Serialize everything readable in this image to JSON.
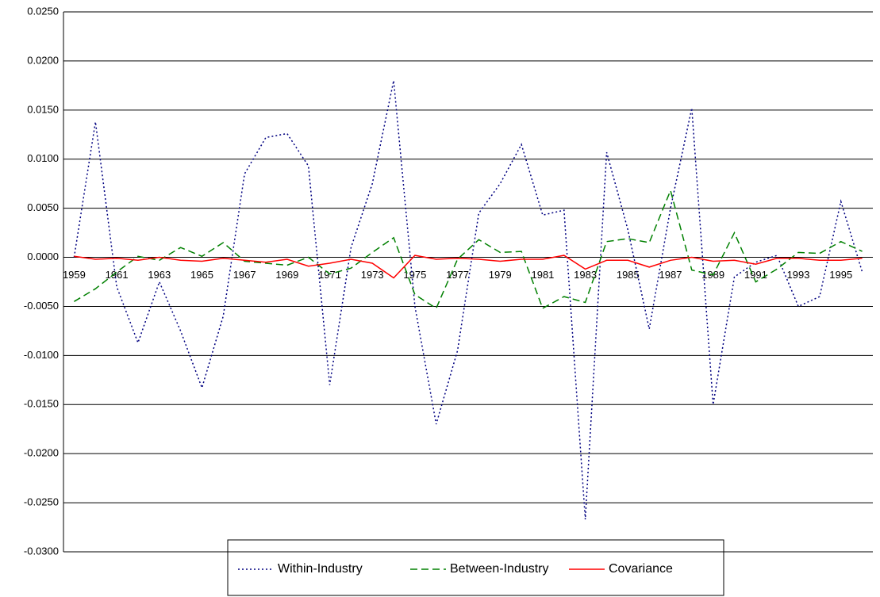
{
  "chart_data": {
    "type": "line",
    "categories": [
      "1959",
      null,
      "1961",
      null,
      "1963",
      null,
      "1965",
      null,
      "1967",
      null,
      "1969",
      null,
      "1971",
      null,
      "1973",
      null,
      "1975",
      null,
      "1977",
      null,
      "1979",
      null,
      "1981",
      null,
      "1983",
      null,
      "1985",
      null,
      "1987",
      null,
      "1989",
      null,
      "1991",
      null,
      "1993",
      null,
      "1995",
      null
    ],
    "series": [
      {
        "name": "Within-Industry",
        "color": "#000080",
        "dash": "2,3",
        "values": [
          0.0,
          0.0138,
          -0.003,
          -0.0087,
          -0.0025,
          -0.0075,
          -0.0133,
          -0.006,
          0.0085,
          0.0122,
          0.0126,
          0.0093,
          -0.013,
          0.001,
          0.0075,
          0.018,
          -0.005,
          -0.017,
          -0.0095,
          0.0045,
          0.0075,
          0.0115,
          0.0043,
          0.0048,
          -0.0267,
          0.0107,
          0.0028,
          -0.0073,
          0.005,
          0.0152,
          -0.015,
          -0.002,
          -0.0005,
          0.0002,
          -0.005,
          -0.004,
          0.0057,
          -0.0015
        ]
      },
      {
        "name": "Between-Industry",
        "color": "#008000",
        "dash": "9,5",
        "values": [
          -0.0045,
          -0.0032,
          -0.0015,
          0.0001,
          -0.0003,
          0.001,
          0.0001,
          0.0015,
          -0.0004,
          -0.0006,
          -0.0008,
          0.0,
          -0.0017,
          -0.0011,
          0.0005,
          0.002,
          -0.0038,
          -0.0052,
          -0.0002,
          0.0018,
          0.0005,
          0.0006,
          -0.0052,
          -0.004,
          -0.0046,
          0.0016,
          0.0019,
          0.0015,
          0.0068,
          -0.0013,
          -0.0018,
          0.0025,
          -0.0025,
          -0.0012,
          0.0005,
          0.0004,
          0.0016,
          0.0006
        ]
      },
      {
        "name": "Covariance",
        "color": "#ff0000",
        "dash": "none",
        "values": [
          0.0001,
          -0.0002,
          -0.0001,
          -0.0003,
          0.0,
          -0.0003,
          -0.0004,
          -0.0001,
          -0.0003,
          -0.0005,
          -0.0002,
          -0.0009,
          -0.0006,
          -0.0002,
          -0.0006,
          -0.0021,
          0.0002,
          -0.0002,
          -0.0001,
          -0.0002,
          -0.0004,
          -0.0002,
          -0.0002,
          0.0002,
          -0.0012,
          -0.0003,
          -0.0003,
          -0.001,
          -0.0003,
          0.0,
          -0.0004,
          -0.0003,
          -0.0007,
          -0.0001,
          -0.0001,
          -0.0003,
          -0.0003,
          -0.0001
        ]
      }
    ],
    "ylim": [
      -0.03,
      0.025
    ],
    "yticks": [
      {
        "value": -0.03,
        "label": "-0.0300"
      },
      {
        "value": -0.025,
        "label": "-0.0250"
      },
      {
        "value": -0.02,
        "label": "-0.0200"
      },
      {
        "value": -0.015,
        "label": "-0.0150"
      },
      {
        "value": -0.01,
        "label": "-0.0100"
      },
      {
        "value": -0.005,
        "label": "-0.0050"
      },
      {
        "value": 0,
        "label": "0.0000"
      },
      {
        "value": 0.005,
        "label": "0.0050"
      },
      {
        "value": 0.01,
        "label": "0.0100"
      },
      {
        "value": 0.015,
        "label": "0.0150"
      },
      {
        "value": 0.02,
        "label": "0.0200"
      },
      {
        "value": 0.025,
        "label": "0.0250"
      }
    ],
    "grid": true,
    "legend": "bottom"
  }
}
